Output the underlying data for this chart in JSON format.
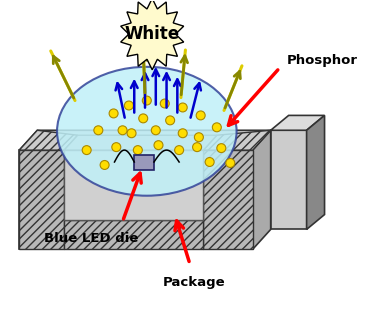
{
  "white_label": "White",
  "phosphor_label": "Phosphor",
  "blue_led_label": "Blue LED die",
  "package_label": "Package",
  "bg_color": "#ffffff",
  "yellow_dot_color": "#ffdd00",
  "yellow_dot_edge": "#aa8800",
  "blue_arrow_color": "#0000cc",
  "yellow_arrow_color": "#cccc00",
  "red_arrow_color": "#ff0000",
  "star_fill": "#fffacd",
  "star_edge": "#000000",
  "pkg_gray": "#aaaaaa",
  "pkg_dark": "#888888",
  "pkg_light": "#cccccc",
  "pkg_hatch": "#b8b8b8",
  "inner_gray": "#c0c0c0",
  "dome_fill": "#c0f0f8",
  "dome_edge": "#334499"
}
